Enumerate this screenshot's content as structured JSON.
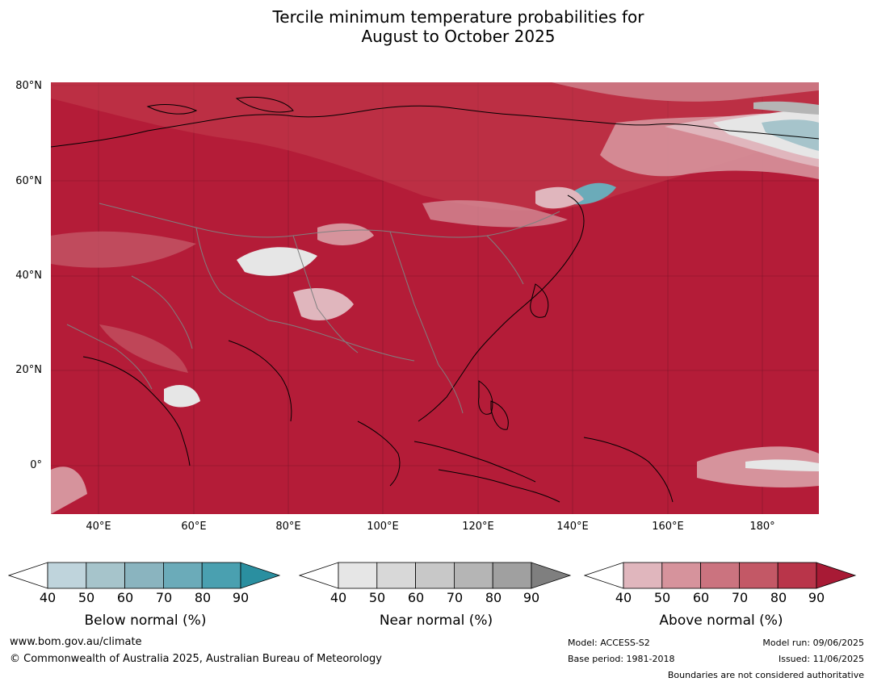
{
  "title": {
    "line1": "Tercile minimum temperature probabilities for",
    "line2": "August to October 2025"
  },
  "map": {
    "lat_labels": [
      "80°N",
      "60°N",
      "40°N",
      "20°N",
      "0°"
    ],
    "lon_labels": [
      "40°E",
      "60°E",
      "80°E",
      "100°E",
      "120°E",
      "140°E",
      "160°E",
      "180°"
    ],
    "dominant_category": "Above normal",
    "colors": {
      "ocean_land_base": "#b41c38",
      "coastline": "#000000",
      "borders": "#808080"
    }
  },
  "colorbars": [
    {
      "label": "Below normal (%)",
      "ticks": [
        "40",
        "50",
        "60",
        "70",
        "80",
        "90"
      ],
      "colors": [
        "#ffffff",
        "#bfd4dc",
        "#a6c4cb",
        "#8ab4bf",
        "#6babb9",
        "#4aa0b0",
        "#2a8fa0"
      ]
    },
    {
      "label": "Near normal (%)",
      "ticks": [
        "40",
        "50",
        "60",
        "70",
        "80",
        "90"
      ],
      "colors": [
        "#ffffff",
        "#e6e6e6",
        "#d8d8d8",
        "#c8c8c8",
        "#b5b5b5",
        "#a0a0a0",
        "#7f7f7f"
      ]
    },
    {
      "label": "Above normal (%)",
      "ticks": [
        "40",
        "50",
        "60",
        "70",
        "80",
        "90"
      ],
      "colors": [
        "#ffffff",
        "#e0b6bd",
        "#d6939c",
        "#cb737f",
        "#c35866",
        "#b9354a",
        "#a81a35"
      ]
    }
  ],
  "footer": {
    "website": "www.bom.gov.au/climate",
    "copyright": "© Commonwealth of Australia 2025, Australian Bureau of Meteorology",
    "model": "Model: ACCESS-S2",
    "base_period": "Base period: 1981-2018",
    "model_run": "Model run: 09/06/2025",
    "issued": "Issued: 11/06/2025",
    "disclaimer": "Boundaries are not considered authoritative"
  }
}
